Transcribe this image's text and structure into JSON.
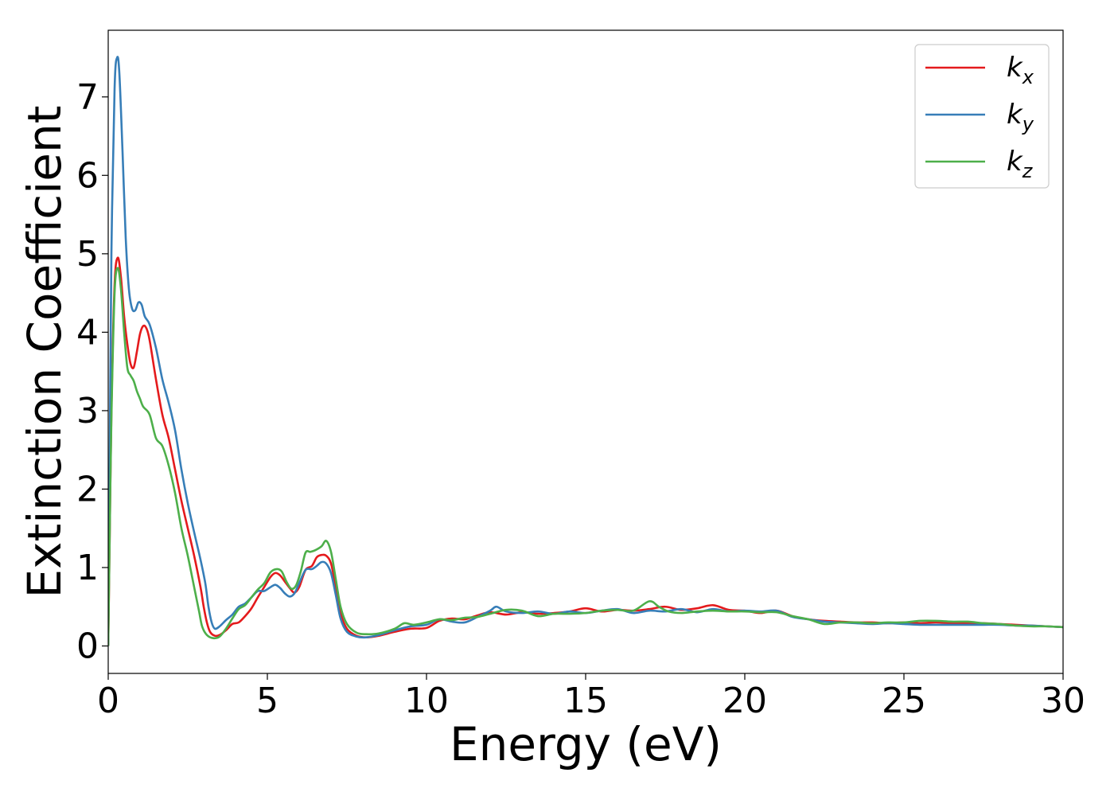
{
  "chart_data": {
    "type": "line",
    "title": "",
    "xlabel": "Energy (eV)",
    "ylabel": "Extinction Coefficient",
    "xlim": [
      0,
      30
    ],
    "ylim": [
      -0.35,
      7.85
    ],
    "xticks": [
      0,
      5,
      10,
      15,
      20,
      25,
      30
    ],
    "yticks": [
      0,
      1,
      2,
      3,
      4,
      5,
      6,
      7
    ],
    "xtick_labels": [
      "0",
      "5",
      "10",
      "15",
      "20",
      "25",
      "30"
    ],
    "ytick_labels": [
      "0",
      "1",
      "2",
      "3",
      "4",
      "5",
      "6",
      "7"
    ],
    "grid": false,
    "legend_position": "top-right",
    "series": [
      {
        "name": "k",
        "subscript": "x",
        "color": "#e41a1c",
        "points": [
          [
            0,
            0
          ],
          [
            0.05,
            1.5
          ],
          [
            0.1,
            3.0
          ],
          [
            0.2,
            4.6
          ],
          [
            0.3,
            4.95
          ],
          [
            0.4,
            4.7
          ],
          [
            0.5,
            4.2
          ],
          [
            0.6,
            3.85
          ],
          [
            0.7,
            3.6
          ],
          [
            0.8,
            3.55
          ],
          [
            0.9,
            3.75
          ],
          [
            1.0,
            3.98
          ],
          [
            1.1,
            4.08
          ],
          [
            1.2,
            4.05
          ],
          [
            1.3,
            3.9
          ],
          [
            1.5,
            3.4
          ],
          [
            1.7,
            2.95
          ],
          [
            1.9,
            2.65
          ],
          [
            2.1,
            2.25
          ],
          [
            2.3,
            1.85
          ],
          [
            2.5,
            1.5
          ],
          [
            2.7,
            1.15
          ],
          [
            2.9,
            0.75
          ],
          [
            3.0,
            0.5
          ],
          [
            3.1,
            0.3
          ],
          [
            3.2,
            0.18
          ],
          [
            3.35,
            0.13
          ],
          [
            3.5,
            0.14
          ],
          [
            3.7,
            0.2
          ],
          [
            3.9,
            0.28
          ],
          [
            4.1,
            0.3
          ],
          [
            4.3,
            0.38
          ],
          [
            4.5,
            0.48
          ],
          [
            4.7,
            0.62
          ],
          [
            4.9,
            0.75
          ],
          [
            5.1,
            0.88
          ],
          [
            5.25,
            0.93
          ],
          [
            5.4,
            0.9
          ],
          [
            5.55,
            0.82
          ],
          [
            5.7,
            0.74
          ],
          [
            5.85,
            0.68
          ],
          [
            6.0,
            0.75
          ],
          [
            6.2,
            0.97
          ],
          [
            6.4,
            1.02
          ],
          [
            6.55,
            1.13
          ],
          [
            6.7,
            1.16
          ],
          [
            6.85,
            1.15
          ],
          [
            7.0,
            1.05
          ],
          [
            7.15,
            0.75
          ],
          [
            7.3,
            0.42
          ],
          [
            7.5,
            0.22
          ],
          [
            7.8,
            0.13
          ],
          [
            8.1,
            0.11
          ],
          [
            8.5,
            0.13
          ],
          [
            9.0,
            0.18
          ],
          [
            9.5,
            0.22
          ],
          [
            10.0,
            0.23
          ],
          [
            10.4,
            0.32
          ],
          [
            10.8,
            0.35
          ],
          [
            11.2,
            0.34
          ],
          [
            11.6,
            0.39
          ],
          [
            12.0,
            0.43
          ],
          [
            12.5,
            0.4
          ],
          [
            13.0,
            0.43
          ],
          [
            13.5,
            0.41
          ],
          [
            14.0,
            0.42
          ],
          [
            14.5,
            0.44
          ],
          [
            15.0,
            0.48
          ],
          [
            15.5,
            0.44
          ],
          [
            16.0,
            0.46
          ],
          [
            16.5,
            0.45
          ],
          [
            17.0,
            0.47
          ],
          [
            17.5,
            0.5
          ],
          [
            18.0,
            0.46
          ],
          [
            18.5,
            0.48
          ],
          [
            19.0,
            0.52
          ],
          [
            19.5,
            0.46
          ],
          [
            20.0,
            0.45
          ],
          [
            20.5,
            0.42
          ],
          [
            21.0,
            0.45
          ],
          [
            21.5,
            0.38
          ],
          [
            22.0,
            0.34
          ],
          [
            22.5,
            0.32
          ],
          [
            23.0,
            0.31
          ],
          [
            23.5,
            0.3
          ],
          [
            24.0,
            0.3
          ],
          [
            24.5,
            0.29
          ],
          [
            25.0,
            0.3
          ],
          [
            25.5,
            0.29
          ],
          [
            26.0,
            0.3
          ],
          [
            26.5,
            0.29
          ],
          [
            27.0,
            0.29
          ],
          [
            27.5,
            0.29
          ],
          [
            28.0,
            0.28
          ],
          [
            28.5,
            0.27
          ],
          [
            29.0,
            0.26
          ],
          [
            29.5,
            0.25
          ],
          [
            30.0,
            0.24
          ]
        ]
      },
      {
        "name": "k",
        "subscript": "y",
        "color": "#377eb8",
        "points": [
          [
            0,
            0
          ],
          [
            0.05,
            2.5
          ],
          [
            0.1,
            5.0
          ],
          [
            0.2,
            7.1
          ],
          [
            0.28,
            7.5
          ],
          [
            0.35,
            7.3
          ],
          [
            0.45,
            6.3
          ],
          [
            0.55,
            5.2
          ],
          [
            0.65,
            4.55
          ],
          [
            0.75,
            4.3
          ],
          [
            0.85,
            4.28
          ],
          [
            0.95,
            4.38
          ],
          [
            1.05,
            4.35
          ],
          [
            1.15,
            4.2
          ],
          [
            1.3,
            4.1
          ],
          [
            1.5,
            3.8
          ],
          [
            1.7,
            3.4
          ],
          [
            1.9,
            3.1
          ],
          [
            2.1,
            2.75
          ],
          [
            2.3,
            2.25
          ],
          [
            2.5,
            1.82
          ],
          [
            2.7,
            1.45
          ],
          [
            2.9,
            1.1
          ],
          [
            3.05,
            0.8
          ],
          [
            3.15,
            0.5
          ],
          [
            3.25,
            0.3
          ],
          [
            3.35,
            0.22
          ],
          [
            3.5,
            0.25
          ],
          [
            3.7,
            0.33
          ],
          [
            3.9,
            0.4
          ],
          [
            4.1,
            0.5
          ],
          [
            4.3,
            0.54
          ],
          [
            4.5,
            0.62
          ],
          [
            4.7,
            0.7
          ],
          [
            4.9,
            0.7
          ],
          [
            5.1,
            0.75
          ],
          [
            5.25,
            0.78
          ],
          [
            5.4,
            0.74
          ],
          [
            5.55,
            0.67
          ],
          [
            5.7,
            0.63
          ],
          [
            5.85,
            0.67
          ],
          [
            6.0,
            0.8
          ],
          [
            6.2,
            0.97
          ],
          [
            6.4,
            0.98
          ],
          [
            6.55,
            1.02
          ],
          [
            6.7,
            1.07
          ],
          [
            6.85,
            1.05
          ],
          [
            7.0,
            0.93
          ],
          [
            7.15,
            0.65
          ],
          [
            7.3,
            0.35
          ],
          [
            7.5,
            0.18
          ],
          [
            7.8,
            0.12
          ],
          [
            8.1,
            0.11
          ],
          [
            8.5,
            0.14
          ],
          [
            9.0,
            0.2
          ],
          [
            9.5,
            0.25
          ],
          [
            10.0,
            0.27
          ],
          [
            10.4,
            0.34
          ],
          [
            10.8,
            0.31
          ],
          [
            11.2,
            0.3
          ],
          [
            11.6,
            0.37
          ],
          [
            12.0,
            0.45
          ],
          [
            12.2,
            0.5
          ],
          [
            12.5,
            0.44
          ],
          [
            13.0,
            0.42
          ],
          [
            13.5,
            0.44
          ],
          [
            14.0,
            0.41
          ],
          [
            14.5,
            0.44
          ],
          [
            15.0,
            0.42
          ],
          [
            15.5,
            0.45
          ],
          [
            16.0,
            0.47
          ],
          [
            16.5,
            0.42
          ],
          [
            17.0,
            0.45
          ],
          [
            17.5,
            0.44
          ],
          [
            18.0,
            0.47
          ],
          [
            18.5,
            0.43
          ],
          [
            19.0,
            0.47
          ],
          [
            19.5,
            0.44
          ],
          [
            20.0,
            0.45
          ],
          [
            20.5,
            0.44
          ],
          [
            21.0,
            0.45
          ],
          [
            21.5,
            0.37
          ],
          [
            22.0,
            0.34
          ],
          [
            22.5,
            0.31
          ],
          [
            23.0,
            0.3
          ],
          [
            23.5,
            0.29
          ],
          [
            24.0,
            0.28
          ],
          [
            24.5,
            0.29
          ],
          [
            25.0,
            0.28
          ],
          [
            25.5,
            0.27
          ],
          [
            26.0,
            0.27
          ],
          [
            26.5,
            0.27
          ],
          [
            27.0,
            0.27
          ],
          [
            27.5,
            0.27
          ],
          [
            28.0,
            0.27
          ],
          [
            28.5,
            0.26
          ],
          [
            29.0,
            0.26
          ],
          [
            29.5,
            0.25
          ],
          [
            30.0,
            0.24
          ]
        ]
      },
      {
        "name": "k",
        "subscript": "z",
        "color": "#4daf4a",
        "points": [
          [
            0,
            0
          ],
          [
            0.05,
            1.5
          ],
          [
            0.1,
            2.9
          ],
          [
            0.2,
            4.5
          ],
          [
            0.3,
            4.82
          ],
          [
            0.4,
            4.55
          ],
          [
            0.5,
            4.0
          ],
          [
            0.6,
            3.55
          ],
          [
            0.7,
            3.45
          ],
          [
            0.8,
            3.38
          ],
          [
            0.9,
            3.25
          ],
          [
            1.0,
            3.15
          ],
          [
            1.1,
            3.05
          ],
          [
            1.3,
            2.95
          ],
          [
            1.5,
            2.65
          ],
          [
            1.7,
            2.55
          ],
          [
            1.9,
            2.3
          ],
          [
            2.1,
            1.95
          ],
          [
            2.3,
            1.5
          ],
          [
            2.5,
            1.15
          ],
          [
            2.7,
            0.75
          ],
          [
            2.85,
            0.45
          ],
          [
            2.95,
            0.25
          ],
          [
            3.1,
            0.14
          ],
          [
            3.3,
            0.1
          ],
          [
            3.5,
            0.12
          ],
          [
            3.7,
            0.22
          ],
          [
            3.9,
            0.35
          ],
          [
            4.1,
            0.47
          ],
          [
            4.3,
            0.52
          ],
          [
            4.5,
            0.62
          ],
          [
            4.7,
            0.72
          ],
          [
            4.9,
            0.8
          ],
          [
            5.1,
            0.94
          ],
          [
            5.3,
            0.98
          ],
          [
            5.45,
            0.95
          ],
          [
            5.6,
            0.82
          ],
          [
            5.75,
            0.73
          ],
          [
            5.9,
            0.77
          ],
          [
            6.05,
            0.95
          ],
          [
            6.2,
            1.19
          ],
          [
            6.35,
            1.2
          ],
          [
            6.5,
            1.22
          ],
          [
            6.7,
            1.27
          ],
          [
            6.85,
            1.34
          ],
          [
            7.0,
            1.2
          ],
          [
            7.15,
            0.85
          ],
          [
            7.3,
            0.5
          ],
          [
            7.5,
            0.28
          ],
          [
            7.8,
            0.17
          ],
          [
            8.1,
            0.15
          ],
          [
            8.5,
            0.16
          ],
          [
            9.0,
            0.22
          ],
          [
            9.3,
            0.29
          ],
          [
            9.6,
            0.27
          ],
          [
            10.0,
            0.3
          ],
          [
            10.4,
            0.34
          ],
          [
            10.8,
            0.33
          ],
          [
            11.2,
            0.36
          ],
          [
            11.6,
            0.37
          ],
          [
            12.0,
            0.41
          ],
          [
            12.5,
            0.46
          ],
          [
            13.0,
            0.45
          ],
          [
            13.5,
            0.38
          ],
          [
            14.0,
            0.41
          ],
          [
            14.5,
            0.41
          ],
          [
            15.0,
            0.42
          ],
          [
            15.5,
            0.45
          ],
          [
            16.0,
            0.46
          ],
          [
            16.5,
            0.45
          ],
          [
            17.0,
            0.57
          ],
          [
            17.3,
            0.5
          ],
          [
            17.6,
            0.44
          ],
          [
            18.0,
            0.42
          ],
          [
            18.5,
            0.44
          ],
          [
            19.0,
            0.45
          ],
          [
            19.5,
            0.44
          ],
          [
            20.0,
            0.44
          ],
          [
            20.5,
            0.43
          ],
          [
            21.0,
            0.43
          ],
          [
            21.5,
            0.38
          ],
          [
            22.0,
            0.34
          ],
          [
            22.5,
            0.28
          ],
          [
            23.0,
            0.3
          ],
          [
            23.5,
            0.3
          ],
          [
            24.0,
            0.29
          ],
          [
            24.5,
            0.3
          ],
          [
            25.0,
            0.3
          ],
          [
            25.5,
            0.32
          ],
          [
            26.0,
            0.32
          ],
          [
            26.5,
            0.31
          ],
          [
            27.0,
            0.31
          ],
          [
            27.5,
            0.29
          ],
          [
            28.0,
            0.28
          ],
          [
            28.5,
            0.26
          ],
          [
            29.0,
            0.25
          ],
          [
            29.5,
            0.25
          ],
          [
            30.0,
            0.24
          ]
        ]
      }
    ]
  }
}
